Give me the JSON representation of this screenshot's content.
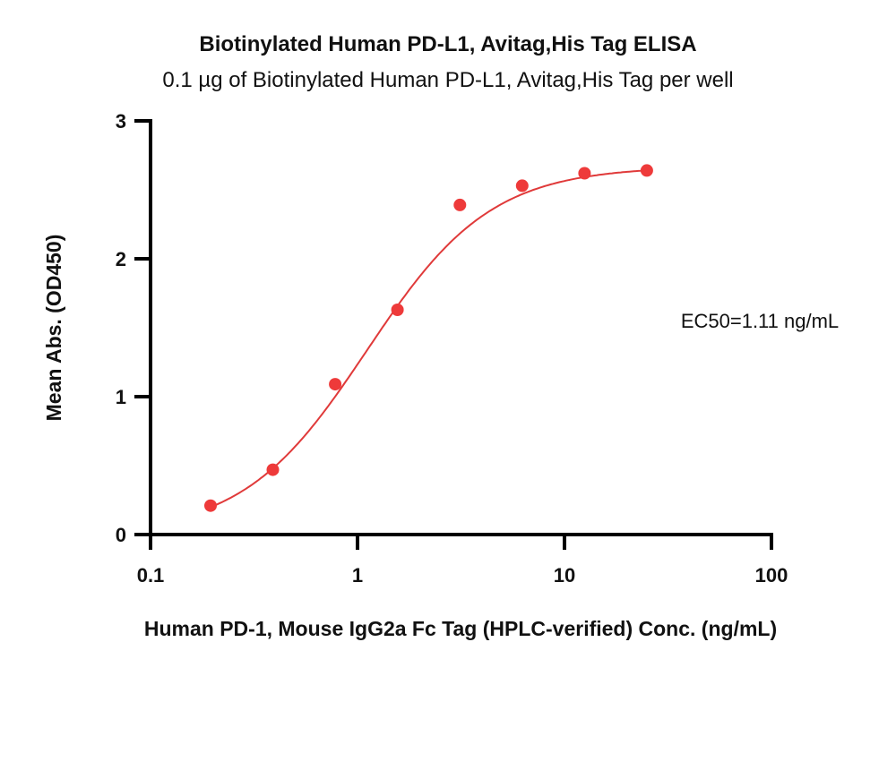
{
  "chart_data": {
    "type": "scatter",
    "title": "Biotinylated Human PD-L1, Avitag,His Tag ELISA",
    "subtitle": "0.1 µg of Biotinylated Human PD-L1, Avitag,His Tag per well",
    "xlabel": "Human PD-1, Mouse IgG2a Fc Tag (HPLC-verified) Conc. (ng/mL)",
    "ylabel": "Mean Abs. (OD450)",
    "xscale": "log",
    "xlim": [
      0.1,
      100
    ],
    "ylim": [
      0,
      3
    ],
    "xticks": [
      "0.1",
      "1",
      "10",
      "100"
    ],
    "yticks": [
      "0",
      "1",
      "2",
      "3"
    ],
    "grid": false,
    "series": [
      {
        "name": "Biotinylated Human PD-L1",
        "color": "#ee3a3a",
        "x": [
          0.195,
          0.39,
          0.78,
          1.56,
          3.125,
          6.25,
          12.5,
          25
        ],
        "y": [
          0.21,
          0.47,
          1.09,
          1.63,
          2.39,
          2.53,
          2.62,
          2.64
        ],
        "fit": {
          "model": "4PL",
          "bottom": 0.0,
          "top": 2.67,
          "ec50": 1.11,
          "hill": 1.45
        }
      }
    ],
    "annotations": [
      {
        "text": "EC50=1.11 ng/mL"
      }
    ]
  }
}
